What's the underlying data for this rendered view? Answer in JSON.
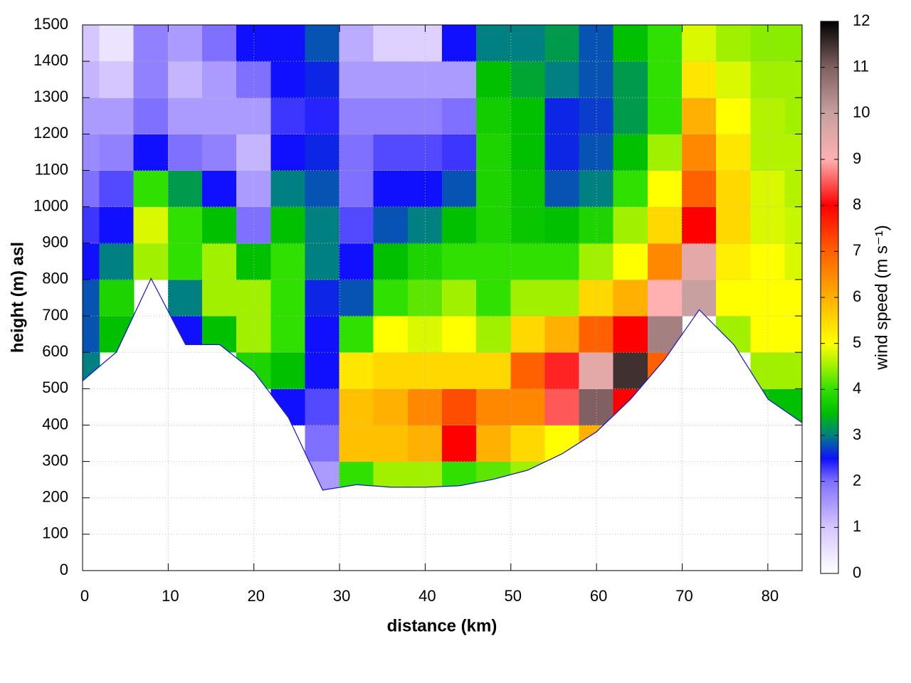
{
  "chart_data": {
    "type": "heatmap",
    "x_label": "distance (km)",
    "y_label": "height (m) asl",
    "z_label": "wind speed (m s⁻¹)",
    "xlim": [
      0,
      84
    ],
    "ylim": [
      0,
      1500
    ],
    "zlim": [
      0,
      12
    ],
    "xticks": [
      0,
      10,
      20,
      30,
      40,
      50,
      60,
      70,
      80
    ],
    "yticks": [
      0,
      100,
      200,
      300,
      400,
      500,
      600,
      700,
      800,
      900,
      1000,
      1100,
      1200,
      1300,
      1400,
      1500
    ],
    "zticks": [
      0,
      1,
      2,
      3,
      4,
      5,
      6,
      7,
      8,
      9,
      10,
      11,
      12
    ],
    "grid": true,
    "x": [
      0,
      4,
      8,
      12,
      16,
      20,
      24,
      28,
      32,
      36,
      40,
      44,
      48,
      52,
      56,
      60,
      64,
      68,
      72,
      76,
      80,
      84
    ],
    "y": [
      250,
      350,
      450,
      550,
      650,
      750,
      850,
      950,
      1050,
      1150,
      1250,
      1350,
      1450
    ],
    "ground": [
      520,
      600,
      800,
      620,
      620,
      545,
      420,
      220,
      235,
      228,
      228,
      232,
      250,
      275,
      320,
      380,
      470,
      580,
      715,
      620,
      470,
      405
    ],
    "ground_color": "#1a1ad0",
    "z": [
      [
        null,
        null,
        null,
        null,
        null,
        null,
        null,
        1.5,
        4,
        4.5,
        4.5,
        4,
        4.2,
        4.5,
        null,
        null,
        null,
        null,
        null,
        null,
        null,
        null
      ],
      [
        null,
        null,
        null,
        null,
        null,
        null,
        null,
        2,
        5.8,
        5.8,
        6,
        8,
        6,
        5.5,
        5,
        6,
        null,
        null,
        null,
        null,
        null,
        null
      ],
      [
        null,
        null,
        null,
        null,
        null,
        null,
        2.5,
        2.2,
        5.8,
        6,
        6.5,
        7.2,
        6.5,
        6.5,
        8.5,
        11,
        8,
        null,
        null,
        null,
        3.5,
        3.5
      ],
      [
        3,
        null,
        null,
        null,
        null,
        3.8,
        3.5,
        2.5,
        5.3,
        5.5,
        5.5,
        5.5,
        5.5,
        7,
        8.2,
        9.5,
        11.5,
        7,
        null,
        null,
        4.5,
        4.5
      ],
      [
        2.8,
        3.5,
        null,
        2.5,
        3.5,
        4.5,
        4,
        2.5,
        4,
        5,
        4.8,
        5,
        4.5,
        5.5,
        6,
        7,
        8,
        10.5,
        null,
        4.5,
        5,
        5
      ],
      [
        2.8,
        3.8,
        null,
        3,
        4.5,
        4.5,
        4,
        2.6,
        2.8,
        4,
        4.2,
        4.5,
        4,
        4.5,
        4.5,
        5.5,
        6,
        9,
        10,
        5,
        5,
        5
      ],
      [
        2.5,
        3,
        4.5,
        4,
        4.5,
        3.5,
        4,
        3,
        2.5,
        3.5,
        3.8,
        4,
        4,
        4,
        4,
        4.5,
        5,
        6.5,
        9.5,
        5.2,
        5,
        4.8
      ],
      [
        2.3,
        2.5,
        4.8,
        4,
        3.5,
        2,
        3.5,
        3,
        2.2,
        2.8,
        3,
        3.5,
        3.8,
        3.6,
        3.5,
        3.8,
        4.5,
        5.5,
        8,
        5.5,
        4.8,
        4.7
      ],
      [
        2,
        2.2,
        4,
        3.2,
        2.5,
        1.5,
        3,
        2.8,
        2,
        2.5,
        2.5,
        2.8,
        3.8,
        3.6,
        2.8,
        3,
        4,
        5,
        7,
        5.5,
        4.8,
        4.6
      ],
      [
        1.7,
        1.8,
        2.5,
        2,
        1.8,
        1.2,
        2.5,
        2.6,
        2,
        2.2,
        2.2,
        2.3,
        3.8,
        3.5,
        2.6,
        2.8,
        3.5,
        4.5,
        6.5,
        5.3,
        4.6,
        4.6
      ],
      [
        1.5,
        1.5,
        2,
        1.5,
        1.5,
        1.5,
        2.3,
        2.4,
        1.8,
        1.8,
        1.8,
        2,
        3.7,
        3.5,
        2.6,
        2.7,
        3.2,
        4,
        6,
        5,
        4.6,
        4.5
      ],
      [
        1.2,
        1,
        1.8,
        1.2,
        1.5,
        2,
        2.5,
        2.6,
        1.5,
        1.5,
        1.5,
        1.5,
        3.5,
        3.3,
        3,
        2.8,
        3.2,
        4,
        5.3,
        4.8,
        4.5,
        4.5
      ],
      [
        1,
        0.5,
        1.8,
        1.5,
        2,
        2.5,
        2.5,
        2.8,
        1.3,
        0.8,
        0.8,
        2.5,
        3,
        3,
        3.2,
        2.8,
        3.5,
        4,
        4.8,
        4.5,
        4.4,
        4.4
      ]
    ],
    "colormap": [
      {
        "value": 0,
        "color": "#ffffff"
      },
      {
        "value": 1,
        "color": "#d6c6ff"
      },
      {
        "value": 2,
        "color": "#8070ff"
      },
      {
        "value": 2.5,
        "color": "#1010ff"
      },
      {
        "value": 3,
        "color": "#008080"
      },
      {
        "value": 3.5,
        "color": "#00c000"
      },
      {
        "value": 4,
        "color": "#30e000"
      },
      {
        "value": 4.5,
        "color": "#a0f000"
      },
      {
        "value": 5,
        "color": "#ffff00"
      },
      {
        "value": 6,
        "color": "#ffb000"
      },
      {
        "value": 7,
        "color": "#ff6000"
      },
      {
        "value": 8,
        "color": "#ff0000"
      },
      {
        "value": 9,
        "color": "#ffb0b0"
      },
      {
        "value": 10,
        "color": "#c8a0a0"
      },
      {
        "value": 11,
        "color": "#806060"
      },
      {
        "value": 12,
        "color": "#000000"
      }
    ]
  }
}
